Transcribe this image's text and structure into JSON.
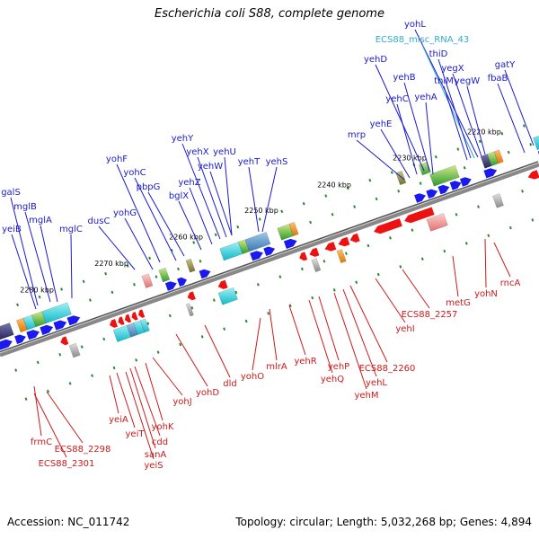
{
  "title": "Escherichia coli S88, complete genome",
  "footer": {
    "accession": "Accession: NC_011742",
    "summary": "Topology: circular; Length: 5,032,268 bp; Genes: 4,894"
  },
  "colors": {
    "forward_label": "#1a1acc",
    "reverse_label": "#cc1a1a",
    "rna_label": "#33aacc",
    "backbone": "#888888",
    "tick": "#2a8a2a"
  },
  "kbp_ticks": [
    "2220 kbp",
    "2230 kbp",
    "2240 kbp",
    "2250 kbp",
    "2260 kbp",
    "2270 kbp",
    "2280 kbp"
  ],
  "forward_labels": [
    "yohL",
    "ECS88_misc_RNA_43",
    "thiD",
    "yegX",
    "thiM",
    "yegW",
    "gatY",
    "fbaB",
    "yehD",
    "yehB",
    "yehC",
    "yehA",
    "yehE",
    "mrp",
    "yehY",
    "yehX",
    "yehU",
    "yehW",
    "yohF",
    "yohC",
    "yehZ",
    "pbpG",
    "yehT",
    "yehS",
    "bglX",
    "yohG",
    "dusC",
    "galS",
    "mglB",
    "mglA",
    "mglC",
    "yeiB"
  ],
  "reverse_labels": [
    "rncA",
    "yohN",
    "metG",
    "ECS88_2257",
    "yehI",
    "ECS88_2260",
    "yehL",
    "yehM",
    "yehP",
    "yehQ",
    "yehR",
    "mlrA",
    "yohO",
    "dld",
    "yohD",
    "yohJ",
    "yohK",
    "cdd",
    "sanA",
    "yeiS",
    "yeiT",
    "yeiA",
    "frmC",
    "ECS88_2298",
    "ECS88_2301"
  ]
}
